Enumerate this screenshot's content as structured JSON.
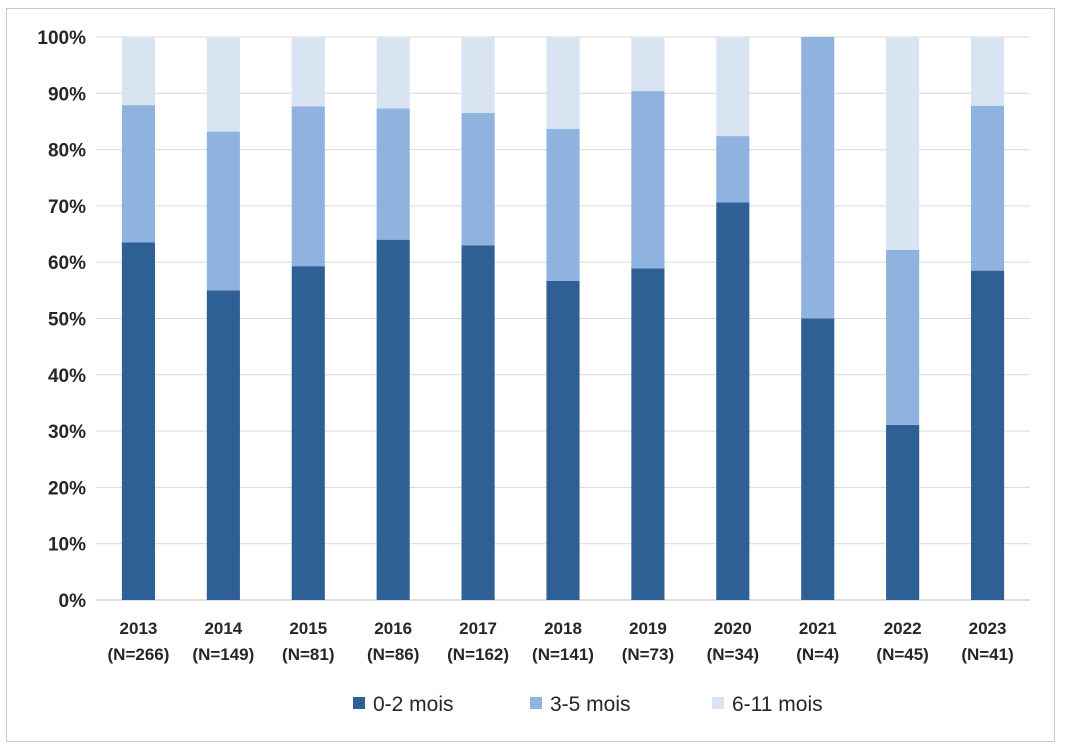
{
  "chart_data": {
    "type": "bar",
    "stacked": true,
    "title": "",
    "xlabel": "",
    "ylabel": "",
    "ylim": [
      0,
      100
    ],
    "y_ticks": [
      "0%",
      "10%",
      "20%",
      "30%",
      "40%",
      "50%",
      "60%",
      "70%",
      "80%",
      "90%",
      "100%"
    ],
    "categories": [
      {
        "year": "2013",
        "n": "(N=266)"
      },
      {
        "year": "2014",
        "n": "(N=149)"
      },
      {
        "year": "2015",
        "n": "(N=81)"
      },
      {
        "year": "2016",
        "n": "(N=86)"
      },
      {
        "year": "2017",
        "n": "(N=162)"
      },
      {
        "year": "2018",
        "n": "(N=141)"
      },
      {
        "year": "2019",
        "n": "(N=73)"
      },
      {
        "year": "2020",
        "n": "(N=34)"
      },
      {
        "year": "2021",
        "n": "(N=4)"
      },
      {
        "year": "2022",
        "n": "(N=45)"
      },
      {
        "year": "2023",
        "n": "(N=41)"
      }
    ],
    "series": [
      {
        "name": "0-2 mois",
        "color": "#2e6096",
        "values": [
          63.5,
          55.0,
          59.3,
          64.0,
          63.0,
          56.7,
          58.9,
          70.6,
          50.0,
          31.1,
          58.5
        ]
      },
      {
        "name": "3-5 mois",
        "color": "#8fb2de",
        "values": [
          24.4,
          28.2,
          28.4,
          23.3,
          23.5,
          27.0,
          31.5,
          11.8,
          50.0,
          31.1,
          29.3
        ]
      },
      {
        "name": "6-11 mois",
        "color": "#d9e4f3",
        "values": [
          12.1,
          16.8,
          12.3,
          12.7,
          13.5,
          16.3,
          9.6,
          17.6,
          0.0,
          37.8,
          12.2
        ]
      }
    ],
    "grid": true,
    "legend_position": "bottom"
  }
}
